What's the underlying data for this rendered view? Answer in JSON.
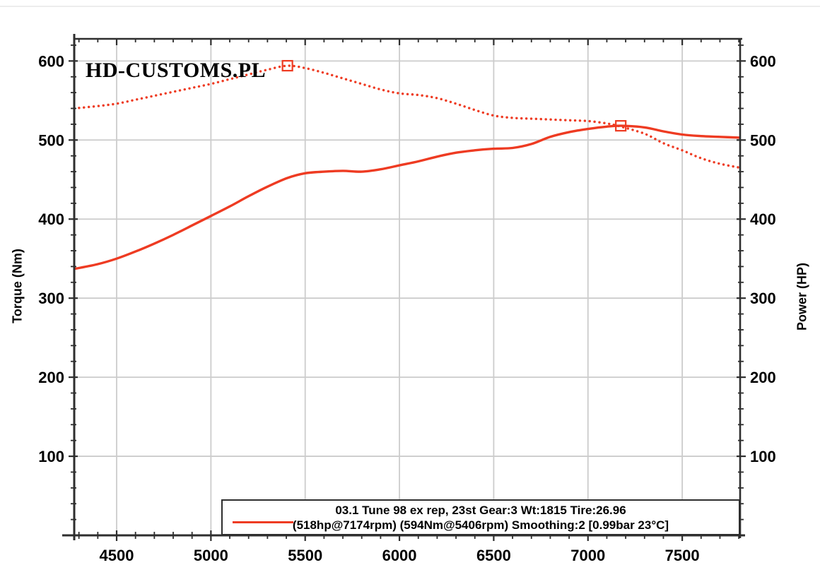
{
  "watermark": "HD-CUSTOMS.PL",
  "chart_data": {
    "type": "line",
    "title": "",
    "xlabel": "",
    "ylabel_left": "Torque (Nm)",
    "ylabel_right": "Power (HP)",
    "xlim": [
      4275,
      7807
    ],
    "ylim": [
      0,
      628
    ],
    "x_ticks_major": [
      4500,
      5000,
      5500,
      6000,
      6500,
      7000,
      7500
    ],
    "x_minor_step": 100,
    "y_ticks_major": [
      100,
      200,
      300,
      400,
      500,
      600
    ],
    "y_minor_step": 20,
    "grid": true,
    "line_color": "#ee3b22",
    "grid_color": "#cccccc",
    "axis_color": "#2e2e2e",
    "x": [
      4275,
      4400,
      4500,
      4600,
      4700,
      4800,
      4900,
      5000,
      5100,
      5200,
      5300,
      5406,
      5500,
      5600,
      5700,
      5800,
      5900,
      6000,
      6100,
      6200,
      6300,
      6400,
      6500,
      6600,
      6700,
      6800,
      6900,
      7000,
      7100,
      7174,
      7300,
      7400,
      7500,
      7600,
      7700,
      7807
    ],
    "series": [
      {
        "name": "Power (HP)",
        "style": "solid",
        "values": [
          337,
          343,
          350,
          359,
          369,
          380,
          392,
          404,
          416,
          429,
          441,
          452,
          458,
          460,
          461,
          460,
          463,
          468,
          473,
          479,
          484,
          487,
          489,
          490,
          495,
          504,
          510,
          514,
          517,
          518,
          516,
          511,
          507,
          505,
          504,
          503
        ],
        "peak": {
          "x": 7174,
          "y": 518
        }
      },
      {
        "name": "Torque (Nm)",
        "style": "dotted",
        "values": [
          540,
          543,
          546,
          551,
          556,
          561,
          566,
          571,
          577,
          583,
          589,
          594,
          591,
          585,
          578,
          571,
          564,
          559,
          557,
          553,
          546,
          538,
          531,
          528,
          527,
          526,
          525,
          524,
          521,
          517,
          508,
          496,
          487,
          477,
          470,
          465
        ],
        "peak": {
          "x": 5406,
          "y": 594
        }
      }
    ],
    "legend": {
      "line1": "03.1 Tune 98 ex rep, 23st Gear:3 Wt:1815 Tire:26.96",
      "line2": "(518hp@7174rpm) (594Nm@5406rpm) Smoothing:2 [0.99bar 23°C]",
      "position": "bottom"
    }
  }
}
